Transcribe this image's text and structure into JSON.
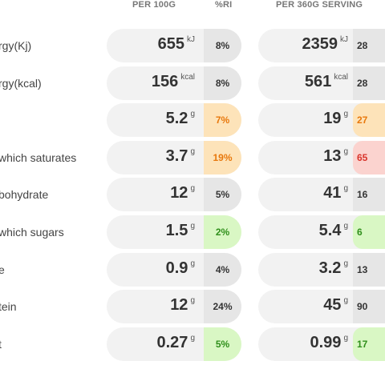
{
  "headers": {
    "per100": "PER 100G",
    "ri": "%RI",
    "serving": "PER 360G SERVING"
  },
  "colors": {
    "orange_bg": "#fde3b9",
    "orange_text": "#e8780c",
    "green_bg": "#d9f7c4",
    "green_text": "#2f8f1b",
    "red_bg": "#fbd3cf",
    "red_text": "#d9342b"
  },
  "rows": [
    {
      "label": "rgy(Kj)",
      "v100": "655",
      "u100": "kJ",
      "ri": "8%",
      "vserv": "2359",
      "userv": "kJ",
      "riserv": "28",
      "level": "neutral",
      "level_serv": "neutral"
    },
    {
      "label": "rgy(kcal)",
      "v100": "156",
      "u100": "kcal",
      "ri": "8%",
      "vserv": "561",
      "userv": "kcal",
      "riserv": "28",
      "level": "neutral",
      "level_serv": "neutral"
    },
    {
      "label": "",
      "v100": "5.2",
      "u100": "g",
      "ri": "7%",
      "vserv": "19",
      "userv": "g",
      "riserv": "27",
      "level": "orange",
      "level_serv": "orange"
    },
    {
      "label": "which saturates",
      "v100": "3.7",
      "u100": "g",
      "ri": "19%",
      "vserv": "13",
      "userv": "g",
      "riserv": "65",
      "level": "orange",
      "level_serv": "red"
    },
    {
      "label": "bohydrate",
      "v100": "12",
      "u100": "g",
      "ri": "5%",
      "vserv": "41",
      "userv": "g",
      "riserv": "16",
      "level": "neutral",
      "level_serv": "neutral"
    },
    {
      "label": "which sugars",
      "v100": "1.5",
      "u100": "g",
      "ri": "2%",
      "vserv": "5.4",
      "userv": "g",
      "riserv": "6",
      "level": "green",
      "level_serv": "green"
    },
    {
      "label": "e",
      "v100": "0.9",
      "u100": "g",
      "ri": "4%",
      "vserv": "3.2",
      "userv": "g",
      "riserv": "13",
      "level": "neutral",
      "level_serv": "neutral"
    },
    {
      "label": "tein",
      "v100": "12",
      "u100": "g",
      "ri": "24%",
      "vserv": "45",
      "userv": "g",
      "riserv": "90",
      "level": "neutral",
      "level_serv": "neutral"
    },
    {
      "label": "t",
      "v100": "0.27",
      "u100": "g",
      "ri": "5%",
      "vserv": "0.99",
      "userv": "g",
      "riserv": "17",
      "level": "green",
      "level_serv": "green"
    }
  ]
}
